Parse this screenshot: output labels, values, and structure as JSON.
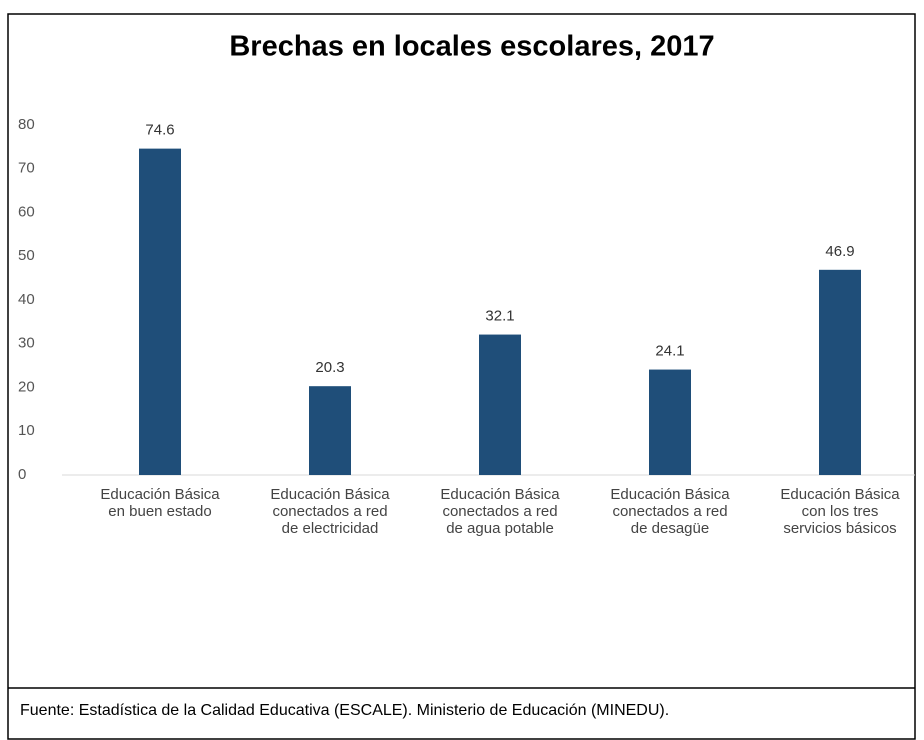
{
  "chart_data": {
    "type": "bar",
    "title": "Brechas en locales escolares, 2017",
    "categories": [
      "Educación Básica\nen buen estado",
      "Educación Básica\nconectados a red\nde electricidad",
      "Educación Básica\nconectados a red\nde agua potable",
      "Educación Básica\nconectados a red\nde desagüe",
      "Educación Básica\ncon los tres\nservicios básicos"
    ],
    "values": [
      74.6,
      20.3,
      32.1,
      24.1,
      46.9
    ],
    "color": "#1f4e79",
    "ylim": [
      0,
      80
    ],
    "yticks": [
      0,
      10,
      20,
      30,
      40,
      50,
      60,
      70,
      80
    ],
    "grid": false
  },
  "footer": {
    "text": "Fuente: Estadística de la Calidad Educativa (ESCALE). Ministerio de Educación (MINEDU)."
  }
}
